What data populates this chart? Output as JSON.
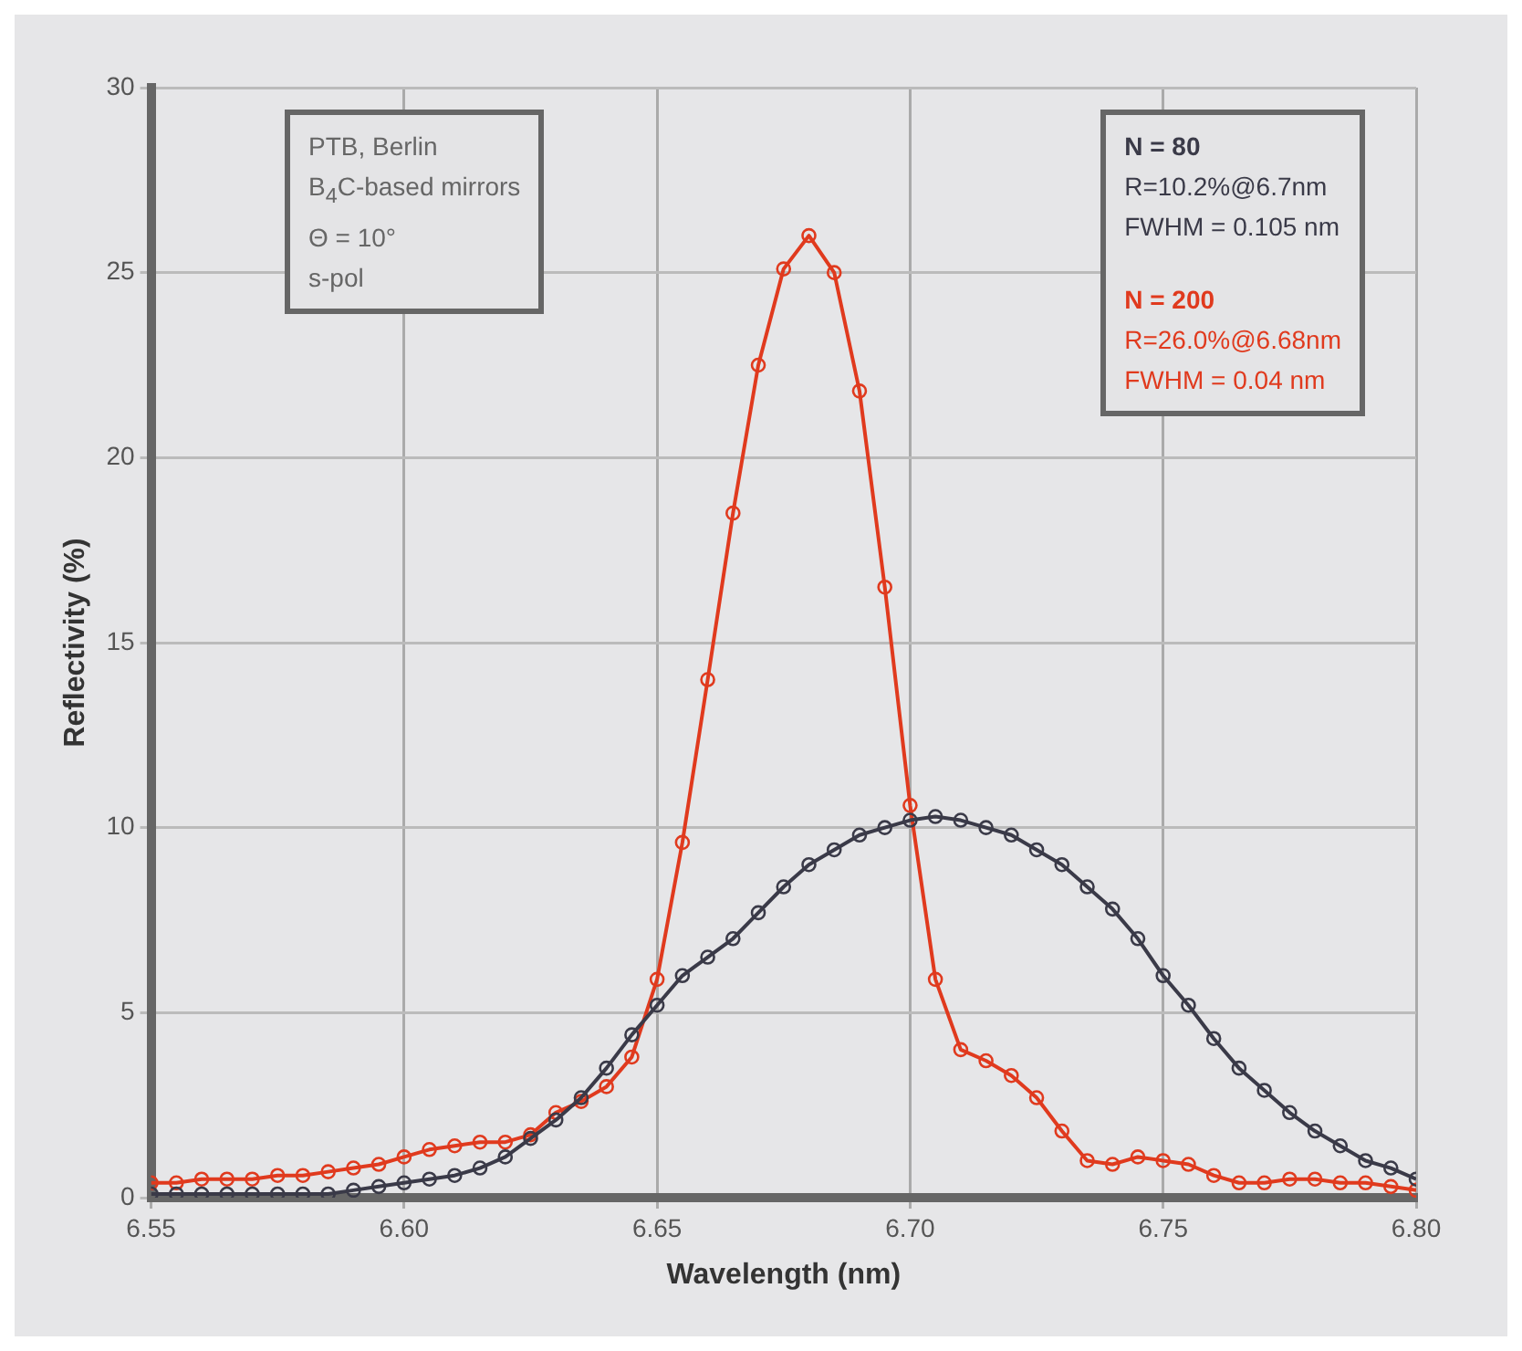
{
  "chart_data": {
    "type": "line",
    "xlabel": "Wavelength (nm)",
    "ylabel": "Reflectivity (%)",
    "x": [
      6.55,
      6.555,
      6.56,
      6.565,
      6.57,
      6.575,
      6.58,
      6.585,
      6.59,
      6.595,
      6.6,
      6.605,
      6.61,
      6.615,
      6.62,
      6.625,
      6.63,
      6.635,
      6.64,
      6.645,
      6.65,
      6.655,
      6.66,
      6.665,
      6.67,
      6.675,
      6.68,
      6.685,
      6.69,
      6.695,
      6.7,
      6.705,
      6.71,
      6.715,
      6.72,
      6.725,
      6.73,
      6.735,
      6.74,
      6.745,
      6.75,
      6.755,
      6.76,
      6.765,
      6.77,
      6.775,
      6.78,
      6.785,
      6.79,
      6.795,
      6.8
    ],
    "series": [
      {
        "name": "N = 80",
        "color": "#3a3a48",
        "values": [
          0.1,
          0.1,
          0.1,
          0.1,
          0.1,
          0.1,
          0.1,
          0.1,
          0.2,
          0.3,
          0.4,
          0.5,
          0.6,
          0.8,
          1.1,
          1.6,
          2.1,
          2.7,
          3.5,
          4.4,
          5.2,
          6.0,
          6.5,
          7.0,
          7.7,
          8.4,
          9.0,
          9.4,
          9.8,
          10.0,
          10.2,
          10.3,
          10.2,
          10.0,
          9.8,
          9.4,
          9.0,
          8.4,
          7.8,
          7.0,
          6.0,
          5.2,
          4.3,
          3.5,
          2.9,
          2.3,
          1.8,
          1.4,
          1.0,
          0.8,
          0.5
        ]
      },
      {
        "name": "N = 200",
        "color": "#e03a1e",
        "values": [
          0.4,
          0.4,
          0.5,
          0.5,
          0.5,
          0.6,
          0.6,
          0.7,
          0.8,
          0.9,
          1.1,
          1.3,
          1.4,
          1.5,
          1.5,
          1.7,
          2.3,
          2.6,
          3.0,
          3.8,
          5.9,
          9.6,
          14.0,
          18.5,
          22.5,
          25.1,
          26.0,
          25.0,
          21.8,
          16.5,
          10.6,
          5.9,
          4.0,
          3.7,
          3.3,
          2.7,
          1.8,
          1.0,
          0.9,
          1.1,
          1.0,
          0.9,
          0.6,
          0.4,
          0.4,
          0.5,
          0.5,
          0.4,
          0.4,
          0.3,
          0.2
        ]
      }
    ],
    "xlim": [
      6.55,
      6.8
    ],
    "xticks": [
      {
        "value": 6.55,
        "label": "6.55"
      },
      {
        "value": 6.6,
        "label": "6.60"
      },
      {
        "value": 6.65,
        "label": "6.65"
      },
      {
        "value": 6.7,
        "label": "6.70"
      },
      {
        "value": 6.75,
        "label": "6.75"
      },
      {
        "value": 6.8,
        "label": "6.80"
      }
    ],
    "ylim": [
      0,
      30
    ],
    "yticks": [
      {
        "value": 0,
        "label": "0"
      },
      {
        "value": 5,
        "label": "5"
      },
      {
        "value": 10,
        "label": "10"
      },
      {
        "value": 15,
        "label": "15"
      },
      {
        "value": 20,
        "label": "20"
      },
      {
        "value": 25,
        "label": "25"
      },
      {
        "value": 30,
        "label": "30"
      }
    ],
    "grid": true,
    "legend": "top right",
    "marker": "circle",
    "line_style": "solid",
    "annotations": [
      "PTB, Berlin",
      "B$_{4}$C-based mirrors",
      "Θ = 10°",
      "s-pol",
      "R=10.2%@6.7nm",
      "FWHM = 0.105 nm",
      "R=26.0%@6.68nm",
      "FWHM = 0.04 nm"
    ]
  }
}
